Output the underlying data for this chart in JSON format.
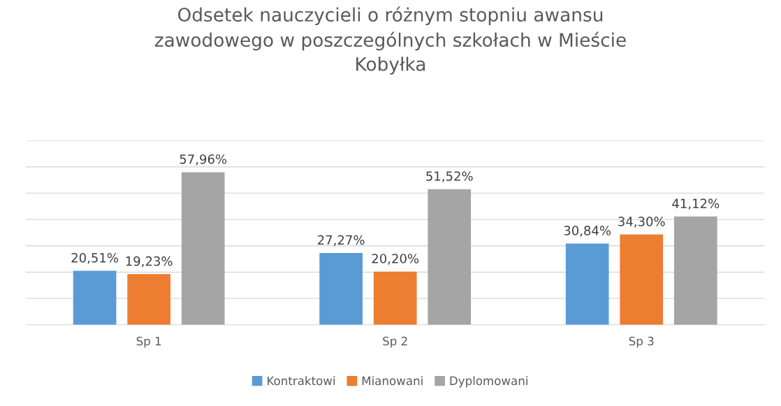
{
  "chart_data": {
    "type": "bar",
    "title": "Odsetek nauczycieli o różnym stopniu awansu\nzawodowego w poszczególnych szkołach w Mieście\nKobyłka",
    "categories": [
      "Sp 1",
      "Sp 2",
      "Sp 3"
    ],
    "series": [
      {
        "name": "Kontraktowi",
        "color": "#5b9bd5",
        "values": [
          20.51,
          27.27,
          30.84
        ],
        "value_labels": [
          "20,51%",
          "27,27%",
          "30,84%"
        ]
      },
      {
        "name": "Mianowani",
        "color": "#ed7d31",
        "values": [
          19.23,
          20.2,
          34.3
        ],
        "value_labels": [
          "19,23%",
          "20,20%",
          "34,30%"
        ]
      },
      {
        "name": "Dyplomowani",
        "color": "#a5a5a5",
        "values": [
          57.96,
          51.52,
          41.12
        ],
        "value_labels": [
          "57,96%",
          "51,52%",
          "41,12%"
        ]
      }
    ],
    "ylim": [
      0,
      70
    ],
    "yticks": [
      {
        "value": 0,
        "label": null
      },
      {
        "value": 10,
        "label": null
      },
      {
        "value": 20,
        "label": null
      },
      {
        "value": 30,
        "label": null
      },
      {
        "value": 40,
        "label": null
      },
      {
        "value": 50,
        "label": null
      },
      {
        "value": 60,
        "label": null
      },
      {
        "value": 70,
        "label": null
      }
    ],
    "tick_labels": "x",
    "grid": "y",
    "legend": "bottom"
  }
}
